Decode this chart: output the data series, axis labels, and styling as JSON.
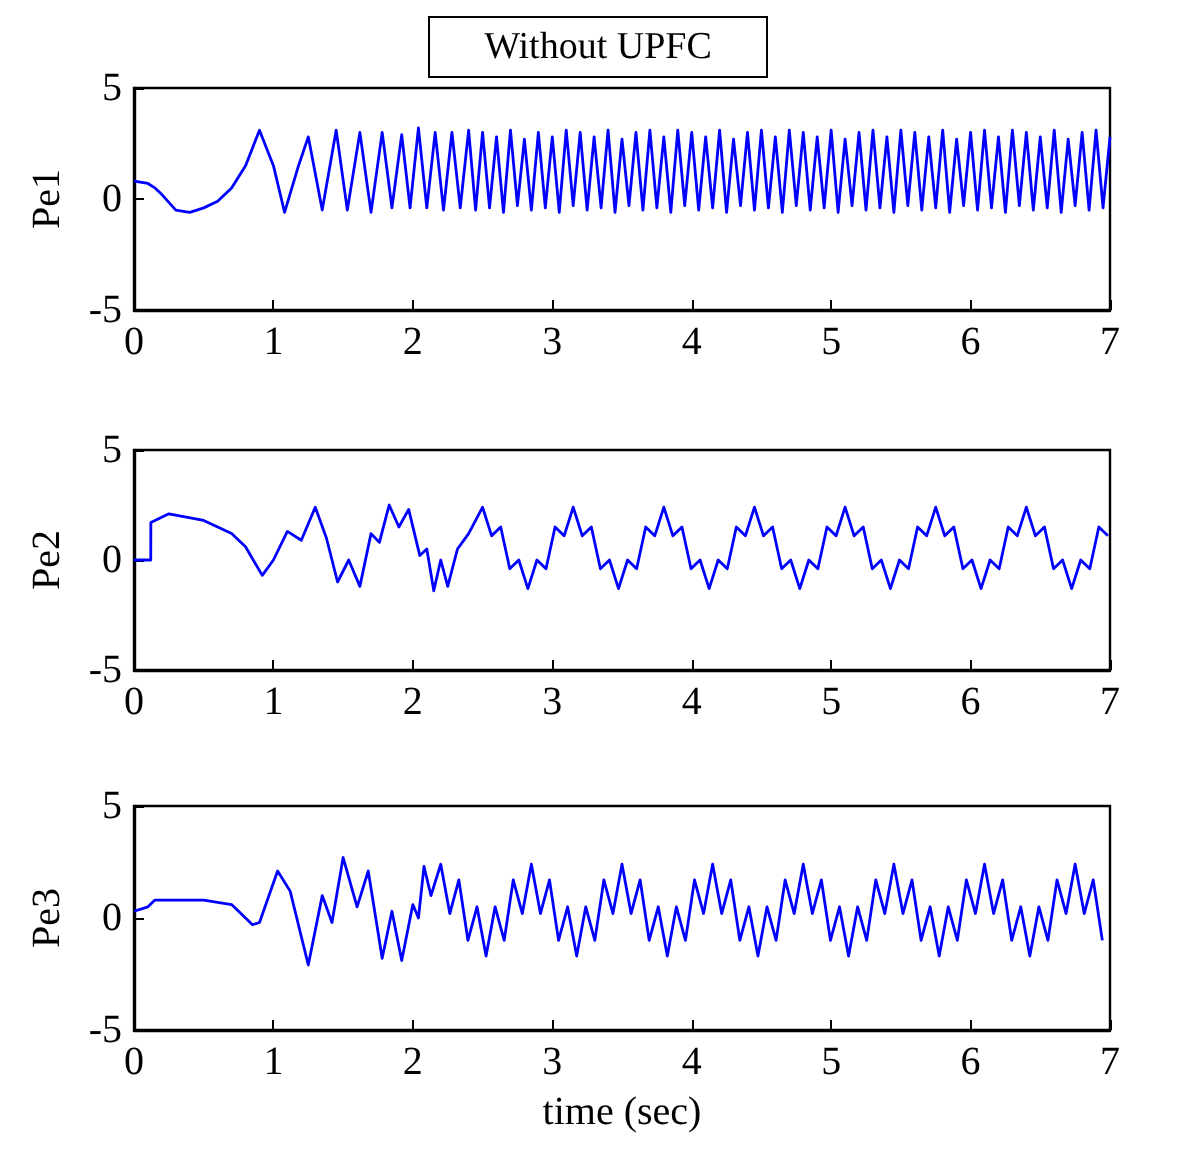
{
  "chart_data": [
    {
      "type": "line",
      "title": "Without UPFC",
      "ylabel": "Pe1",
      "xlim": [
        0,
        7
      ],
      "ylim": [
        -5,
        5
      ],
      "xticks": [
        0,
        1,
        2,
        3,
        4,
        5,
        6,
        7
      ],
      "yticks": [
        -5,
        0,
        5
      ],
      "series": [
        {
          "color": "#0000ff",
          "x": [
            0,
            0.1,
            0.15,
            0.2,
            0.3,
            0.4,
            0.5,
            0.6,
            0.7,
            0.8,
            0.9,
            1.0,
            1.08,
            1.18,
            1.25,
            1.35,
            1.45,
            1.53,
            1.62,
            1.7,
            1.78,
            1.85,
            1.92,
            1.98,
            2.04,
            2.1,
            2.16,
            2.22,
            2.28,
            2.34,
            2.4,
            2.45,
            2.5,
            2.55,
            2.6,
            2.65,
            2.7,
            2.75,
            2.8,
            2.85,
            2.9,
            2.95,
            3.0,
            3.05,
            3.1,
            3.15,
            3.2,
            3.25,
            3.3,
            3.35,
            3.4,
            3.45,
            3.5,
            3.55,
            3.6,
            3.65,
            3.7,
            3.75,
            3.8,
            3.85,
            3.9,
            3.95,
            4.0,
            4.05,
            4.1,
            4.15,
            4.2,
            4.25,
            4.3,
            4.35,
            4.4,
            4.45,
            4.5,
            4.55,
            4.6,
            4.65,
            4.7,
            4.75,
            4.8,
            4.85,
            4.9,
            4.95,
            5.0,
            5.05,
            5.1,
            5.15,
            5.2,
            5.25,
            5.3,
            5.35,
            5.4,
            5.45,
            5.5,
            5.55,
            5.6,
            5.65,
            5.7,
            5.75,
            5.8,
            5.85,
            5.9,
            5.95,
            6.0,
            6.05,
            6.1,
            6.15,
            6.2,
            6.25,
            6.3,
            6.35,
            6.4,
            6.45,
            6.5,
            6.55,
            6.6,
            6.65,
            6.7,
            6.75,
            6.8,
            6.85,
            6.9,
            6.95,
            7.0
          ],
          "values": [
            0.8,
            0.7,
            0.5,
            0.2,
            -0.5,
            -0.6,
            -0.4,
            -0.1,
            0.5,
            1.5,
            3.1,
            1.5,
            -0.6,
            1.5,
            2.8,
            -0.5,
            3.1,
            -0.5,
            3.0,
            -0.6,
            3.0,
            -0.4,
            2.9,
            -0.4,
            3.2,
            -0.4,
            3.0,
            -0.5,
            3.0,
            -0.4,
            3.1,
            -0.5,
            3.0,
            -0.4,
            2.8,
            -0.6,
            3.1,
            -0.3,
            2.7,
            -0.5,
            3.0,
            -0.4,
            2.8,
            -0.6,
            3.1,
            -0.3,
            3.0,
            -0.5,
            2.8,
            -0.4,
            3.1,
            -0.6,
            2.7,
            -0.3,
            3.0,
            -0.5,
            3.1,
            -0.4,
            2.8,
            -0.6,
            3.1,
            -0.3,
            3.0,
            -0.5,
            2.8,
            -0.4,
            3.1,
            -0.6,
            2.7,
            -0.3,
            3.0,
            -0.5,
            3.1,
            -0.4,
            2.8,
            -0.6,
            3.1,
            -0.3,
            3.0,
            -0.5,
            2.8,
            -0.4,
            3.1,
            -0.6,
            2.7,
            -0.3,
            3.0,
            -0.5,
            3.1,
            -0.4,
            2.8,
            -0.6,
            3.1,
            -0.3,
            3.0,
            -0.5,
            2.8,
            -0.4,
            3.1,
            -0.6,
            2.7,
            -0.3,
            3.0,
            -0.5,
            3.1,
            -0.4,
            2.8,
            -0.6,
            3.1,
            -0.3,
            3.0,
            -0.5,
            2.8,
            -0.4,
            3.1,
            -0.6,
            2.7,
            -0.3,
            3.0,
            -0.5,
            3.1,
            -0.4,
            2.8
          ]
        }
      ]
    },
    {
      "type": "line",
      "ylabel": "Pe2",
      "xlim": [
        0,
        7
      ],
      "ylim": [
        -5,
        5
      ],
      "xticks": [
        0,
        1,
        2,
        3,
        4,
        5,
        6,
        7
      ],
      "yticks": [
        -5,
        0,
        5
      ],
      "series": [
        {
          "color": "#0000ff",
          "x": [
            0,
            0.12,
            0.121,
            0.25,
            0.5,
            0.7,
            0.8,
            0.92,
            1.0,
            1.1,
            1.2,
            1.3,
            1.38,
            1.46,
            1.54,
            1.62,
            1.7,
            1.76,
            1.83,
            1.9,
            1.97,
            2.05,
            2.1,
            2.15,
            2.2,
            2.25,
            2.32,
            2.4,
            2.5,
            2.565,
            2.63,
            2.695,
            2.76,
            2.825,
            2.89,
            2.955,
            3.02,
            3.085,
            3.15,
            3.215,
            3.28,
            3.345,
            3.41,
            3.475,
            3.54,
            3.605,
            3.67,
            3.735,
            3.8,
            3.865,
            3.93,
            3.995,
            4.06,
            4.125,
            4.19,
            4.255,
            4.32,
            4.385,
            4.45,
            4.515,
            4.58,
            4.645,
            4.71,
            4.775,
            4.84,
            4.905,
            4.97,
            5.035,
            5.1,
            5.165,
            5.23,
            5.295,
            5.36,
            5.425,
            5.49,
            5.555,
            5.62,
            5.685,
            5.75,
            5.815,
            5.88,
            5.945,
            6.01,
            6.075,
            6.14,
            6.205,
            6.27,
            6.335,
            6.4,
            6.465,
            6.53,
            6.595,
            6.66,
            6.725,
            6.79,
            6.855,
            6.92,
            6.985
          ],
          "values": [
            0,
            0,
            1.7,
            2.1,
            1.8,
            1.2,
            0.6,
            -0.7,
            0,
            1.3,
            0.9,
            2.4,
            1.0,
            -1.0,
            0,
            -1.2,
            1.2,
            0.8,
            2.5,
            1.5,
            2.3,
            0.2,
            0.5,
            -1.4,
            0,
            -1.2,
            0.5,
            1.2,
            2.4,
            1.1,
            1.5,
            -0.4,
            0,
            -1.3,
            0,
            -0.4,
            1.5,
            1.1,
            2.4,
            1.1,
            1.5,
            -0.4,
            0,
            -1.3,
            0,
            -0.4,
            1.5,
            1.1,
            2.4,
            1.1,
            1.5,
            -0.4,
            0,
            -1.3,
            0,
            -0.4,
            1.5,
            1.1,
            2.4,
            1.1,
            1.5,
            -0.4,
            0,
            -1.3,
            0,
            -0.4,
            1.5,
            1.1,
            2.4,
            1.1,
            1.5,
            -0.4,
            0,
            -1.3,
            0,
            -0.4,
            1.5,
            1.1,
            2.4,
            1.1,
            1.5,
            -0.4,
            0,
            -1.3,
            0,
            -0.4,
            1.5,
            1.1,
            2.4,
            1.1,
            1.5,
            -0.4,
            0,
            -1.3,
            0,
            -0.4,
            1.5,
            1.1
          ]
        }
      ]
    },
    {
      "type": "line",
      "ylabel": "Pe3",
      "xlabel": "time (sec)",
      "xlim": [
        0,
        7
      ],
      "ylim": [
        -5,
        5
      ],
      "xticks": [
        0,
        1,
        2,
        3,
        4,
        5,
        6,
        7
      ],
      "yticks": [
        -5,
        0,
        5
      ],
      "series": [
        {
          "color": "#0000ff",
          "x": [
            0,
            0.1,
            0.15,
            0.5,
            0.7,
            0.85,
            0.9,
            1.03,
            1.12,
            1.25,
            1.35,
            1.42,
            1.5,
            1.6,
            1.68,
            1.78,
            1.85,
            1.92,
            2.0,
            2.04,
            2.08,
            2.13,
            2.2,
            2.265,
            2.33,
            2.395,
            2.46,
            2.525,
            2.59,
            2.655,
            2.72,
            2.785,
            2.85,
            2.915,
            2.98,
            3.045,
            3.11,
            3.175,
            3.24,
            3.305,
            3.37,
            3.435,
            3.5,
            3.565,
            3.63,
            3.695,
            3.76,
            3.825,
            3.89,
            3.955,
            4.02,
            4.085,
            4.15,
            4.215,
            4.28,
            4.345,
            4.41,
            4.475,
            4.54,
            4.605,
            4.67,
            4.735,
            4.8,
            4.865,
            4.93,
            4.995,
            5.06,
            5.125,
            5.19,
            5.255,
            5.32,
            5.385,
            5.45,
            5.515,
            5.58,
            5.645,
            5.71,
            5.775,
            5.84,
            5.905,
            5.97,
            6.035,
            6.1,
            6.165,
            6.23,
            6.295,
            6.36,
            6.425,
            6.49,
            6.555,
            6.62,
            6.685,
            6.75,
            6.815,
            6.88,
            6.945
          ],
          "values": [
            0.3,
            0.5,
            0.8,
            0.8,
            0.6,
            -0.3,
            -0.2,
            2.1,
            1.2,
            -2.1,
            1.0,
            -0.2,
            2.7,
            0.5,
            2.1,
            -1.8,
            0.3,
            -1.9,
            0.6,
            0,
            2.3,
            1.0,
            2.4,
            0.2,
            1.7,
            -1.0,
            0.5,
            -1.7,
            0.5,
            -1.0,
            1.7,
            0.2,
            2.4,
            0.2,
            1.7,
            -1.0,
            0.5,
            -1.7,
            0.5,
            -1.0,
            1.7,
            0.2,
            2.4,
            0.2,
            1.7,
            -1.0,
            0.5,
            -1.7,
            0.5,
            -1.0,
            1.7,
            0.2,
            2.4,
            0.2,
            1.7,
            -1.0,
            0.5,
            -1.7,
            0.5,
            -1.0,
            1.7,
            0.2,
            2.4,
            0.2,
            1.7,
            -1.0,
            0.5,
            -1.7,
            0.5,
            -1.0,
            1.7,
            0.2,
            2.4,
            0.2,
            1.7,
            -1.0,
            0.5,
            -1.7,
            0.5,
            -1.0,
            1.7,
            0.2,
            2.4,
            0.2,
            1.7,
            -1.0,
            0.5,
            -1.7,
            0.5,
            -1.0,
            1.7,
            0.2,
            2.4,
            0.2,
            1.7,
            -1.0
          ]
        }
      ]
    }
  ]
}
